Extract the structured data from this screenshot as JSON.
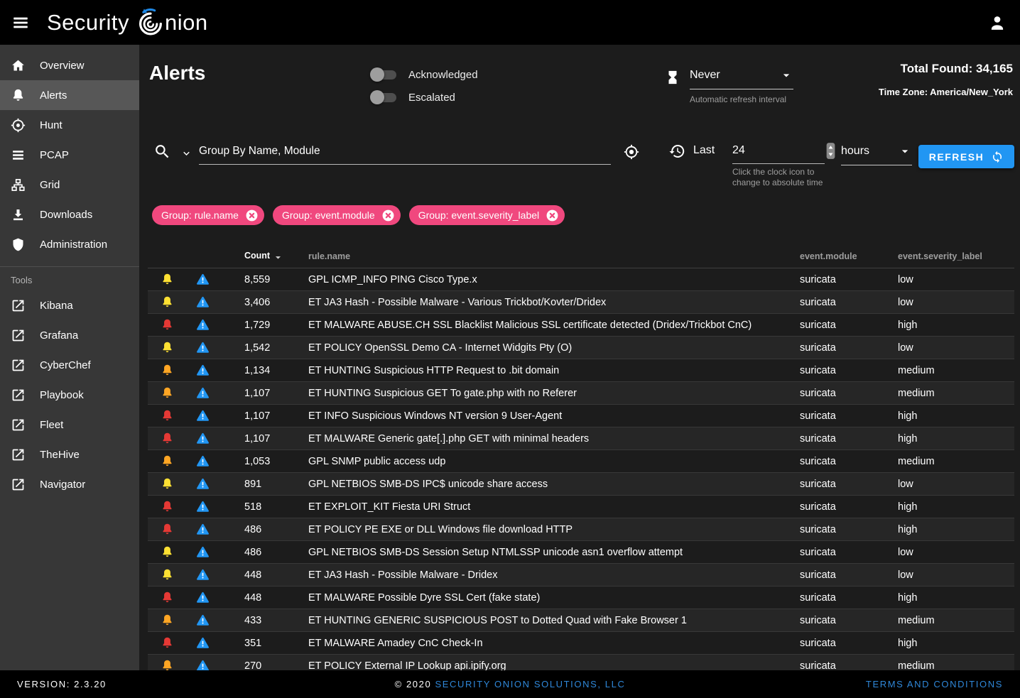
{
  "appbar": {
    "brand_prefix": "Security",
    "brand_suffix": "nion"
  },
  "sidebar": {
    "items": [
      {
        "label": "Overview",
        "icon": "home",
        "active": false
      },
      {
        "label": "Alerts",
        "icon": "bell",
        "active": true
      },
      {
        "label": "Hunt",
        "icon": "crosshair",
        "active": false
      },
      {
        "label": "PCAP",
        "icon": "lines",
        "active": false
      },
      {
        "label": "Grid",
        "icon": "sitemap",
        "active": false
      },
      {
        "label": "Downloads",
        "icon": "download",
        "active": false
      },
      {
        "label": "Administration",
        "icon": "shield",
        "active": false
      }
    ],
    "tools_label": "Tools",
    "tools": [
      {
        "label": "Kibana",
        "icon": "external"
      },
      {
        "label": "Grafana",
        "icon": "external"
      },
      {
        "label": "CyberChef",
        "icon": "external"
      },
      {
        "label": "Playbook",
        "icon": "external"
      },
      {
        "label": "Fleet",
        "icon": "external"
      },
      {
        "label": "TheHive",
        "icon": "external"
      },
      {
        "label": "Navigator",
        "icon": "external"
      }
    ]
  },
  "header": {
    "page_title": "Alerts",
    "toggles": [
      {
        "label": "Acknowledged",
        "on": false
      },
      {
        "label": "Escalated",
        "on": false
      }
    ],
    "refresh_interval": {
      "value": "Never",
      "helper": "Automatic refresh interval"
    },
    "total_found_label": "Total Found:",
    "total_found_value": "34,165",
    "time_zone_label": "Time Zone:",
    "time_zone_value": "America/New_York"
  },
  "query": {
    "group_by_value": "Group By Name, Module",
    "time_range": {
      "prefix": "Last",
      "value": "24",
      "unit": "hours",
      "helper_line1": "Click the clock icon to",
      "helper_line2": "change to absolute time"
    },
    "refresh_label": "REFRESH"
  },
  "filters": {
    "chips": [
      "Group: rule.name",
      "Group: event.module",
      "Group: event.severity_label"
    ]
  },
  "table": {
    "columns": [
      "Count",
      "rule.name",
      "event.module",
      "event.severity_label"
    ],
    "sort_column": "Count",
    "sort_direction": "desc",
    "rows": [
      {
        "count": "8,559",
        "rule": "GPL ICMP_INFO PING Cisco Type.x",
        "module": "suricata",
        "severity": "low"
      },
      {
        "count": "3,406",
        "rule": "ET JA3 Hash - Possible Malware - Various Trickbot/Kovter/Dridex",
        "module": "suricata",
        "severity": "low"
      },
      {
        "count": "1,729",
        "rule": "ET MALWARE ABUSE.CH SSL Blacklist Malicious SSL certificate detected (Dridex/Trickbot CnC)",
        "module": "suricata",
        "severity": "high"
      },
      {
        "count": "1,542",
        "rule": "ET POLICY OpenSSL Demo CA - Internet Widgits Pty (O)",
        "module": "suricata",
        "severity": "low"
      },
      {
        "count": "1,134",
        "rule": "ET HUNTING Suspicious HTTP Request to .bit domain",
        "module": "suricata",
        "severity": "medium"
      },
      {
        "count": "1,107",
        "rule": "ET HUNTING Suspicious GET To gate.php with no Referer",
        "module": "suricata",
        "severity": "medium"
      },
      {
        "count": "1,107",
        "rule": "ET INFO Suspicious Windows NT version 9 User-Agent",
        "module": "suricata",
        "severity": "high"
      },
      {
        "count": "1,107",
        "rule": "ET MALWARE Generic gate[.].php GET with minimal headers",
        "module": "suricata",
        "severity": "high"
      },
      {
        "count": "1,053",
        "rule": "GPL SNMP public access udp",
        "module": "suricata",
        "severity": "medium"
      },
      {
        "count": "891",
        "rule": "GPL NETBIOS SMB-DS IPC$ unicode share access",
        "module": "suricata",
        "severity": "low"
      },
      {
        "count": "518",
        "rule": "ET EXPLOIT_KIT Fiesta URI Struct",
        "module": "suricata",
        "severity": "high"
      },
      {
        "count": "486",
        "rule": "ET POLICY PE EXE or DLL Windows file download HTTP",
        "module": "suricata",
        "severity": "high"
      },
      {
        "count": "486",
        "rule": "GPL NETBIOS SMB-DS Session Setup NTMLSSP unicode asn1 overflow attempt",
        "module": "suricata",
        "severity": "low"
      },
      {
        "count": "448",
        "rule": "ET JA3 Hash - Possible Malware - Dridex",
        "module": "suricata",
        "severity": "low"
      },
      {
        "count": "448",
        "rule": "ET MALWARE Possible Dyre SSL Cert (fake state)",
        "module": "suricata",
        "severity": "high"
      },
      {
        "count": "433",
        "rule": "ET HUNTING GENERIC SUSPICIOUS POST to Dotted Quad with Fake Browser 1",
        "module": "suricata",
        "severity": "medium"
      },
      {
        "count": "351",
        "rule": "ET MALWARE Amadey CnC Check-In",
        "module": "suricata",
        "severity": "high"
      },
      {
        "count": "270",
        "rule": "ET POLICY External IP Lookup api.ipify.org",
        "module": "suricata",
        "severity": "medium"
      }
    ]
  },
  "severity_colors": {
    "low": "#FDE033",
    "medium": "#FFA624",
    "high": "#E53935"
  },
  "colors": {
    "accent_blue": "#2196F3",
    "accent_pink": "#F0487E",
    "logo_blue": "#1E88E5"
  },
  "footer": {
    "version": "VERSION: 2.3.20",
    "copyright": "© 2020 ",
    "company": "SECURITY ONION SOLUTIONS, LLC",
    "terms": "TERMS AND CONDITIONS"
  }
}
